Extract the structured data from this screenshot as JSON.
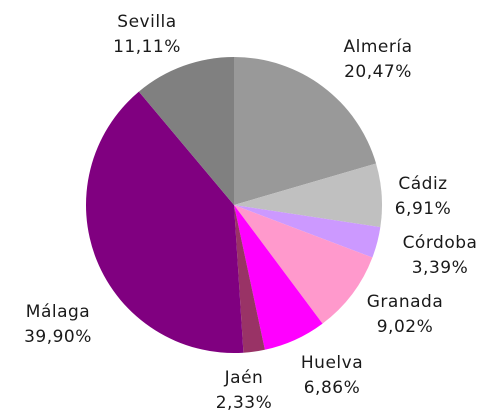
{
  "chart_data": {
    "type": "pie",
    "categories": [
      "Almería",
      "Cádiz",
      "Córdoba",
      "Granada",
      "Huelva",
      "Jaén",
      "Málaga",
      "Sevilla"
    ],
    "values": [
      20.47,
      6.91,
      3.39,
      9.02,
      6.86,
      2.33,
      39.9,
      11.11
    ],
    "value_labels": [
      "20,47%",
      "6,91%",
      "3,39%",
      "9,02%",
      "6,86%",
      "2,33%",
      "39,90%",
      "11,11%"
    ],
    "colors": [
      "#999999",
      "#c0c0c0",
      "#cc99ff",
      "#ff99cc",
      "#ff00ff",
      "#993366",
      "#800080",
      "#808080"
    ]
  }
}
